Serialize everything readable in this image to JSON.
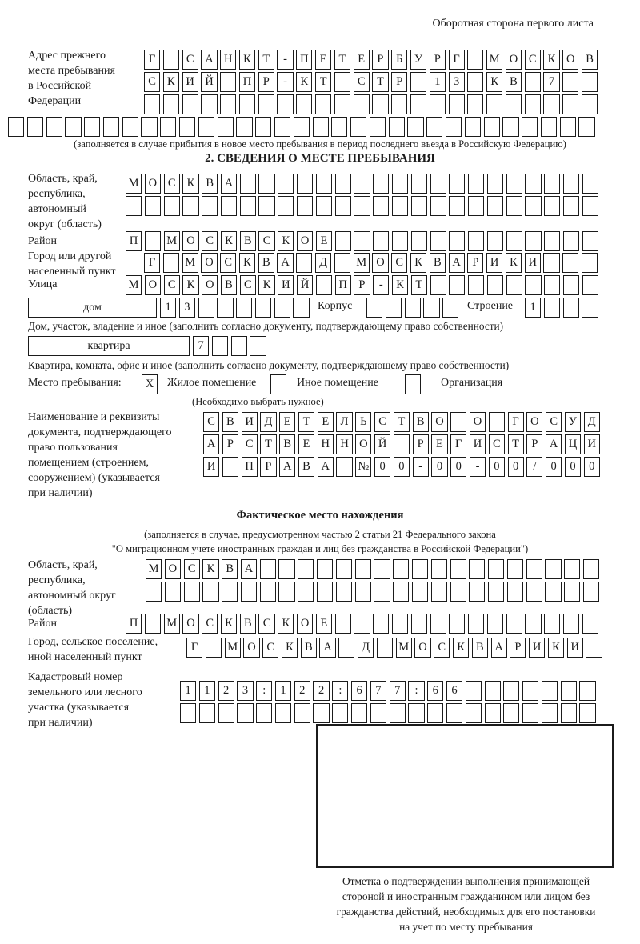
{
  "header_note": "Оборотная сторона первого листа",
  "prev_address": {
    "label": "Адрес прежнего\nместа пребывания\nв Российской\nФедерации",
    "row1": {
      "text": "Г САНКТ-ПЕТЕРБУРГ МОСКОВ",
      "len": 24
    },
    "row2": {
      "text": "СКИЙ ПР-КТ СТР 13 КВ 7",
      "len": 24
    },
    "row3": {
      "text": "",
      "len": 24
    },
    "row4": {
      "text": "",
      "len": 31
    },
    "note": "(заполняется в случае прибытия в новое место пребывания в период последнего въезда в Российскую Федерацию)"
  },
  "section2": {
    "title": "2. СВЕДЕНИЯ О МЕСТЕ ПРЕБЫВАНИЯ",
    "oblast": {
      "label": "Область, край,\nреспублика,\nавтономный\nокруг (область)",
      "row1": {
        "text": "МОСКВА",
        "len": 25
      },
      "row2": {
        "text": "",
        "len": 25
      }
    },
    "raion": {
      "label": "Район",
      "row": {
        "text": "П МОСКВСКОЕ",
        "len": 25
      }
    },
    "gorod": {
      "label": "Город или другой\nнаселенный пункт",
      "row": {
        "text": "Г МОСКВА Д МОСКВАРИКИ",
        "len": 24
      }
    },
    "ulitsa": {
      "label": "Улица",
      "row": {
        "text": "МОСКОВСКИЙ ПР-КТ",
        "len": 25
      }
    },
    "dom": {
      "box_label": "дом",
      "cells": {
        "text": "13",
        "len": 8
      },
      "korpus_label": "Корпус",
      "korpus_cells": {
        "text": "",
        "len": 5
      },
      "stroenie_label": "Строение",
      "stroenie_cells": {
        "text": "1",
        "len": 4
      },
      "note": "Дом, участок, владение и иное (заполнить согласно документу, подтверждающему право собственности)"
    },
    "kvartira": {
      "box_label": "квартира",
      "cells": {
        "text": "7",
        "len": 4
      },
      "note": "Квартира, комната, офис и иное (заполнить согласно документу, подтверждающему право собственности)"
    },
    "mesto": {
      "label": "Место пребывания:",
      "check1": "X",
      "option1": "Жилое помещение",
      "check2": "",
      "option2": "Иное помещение",
      "check3": "",
      "option3": "Организация",
      "note": "(Необходимо выбрать нужное)"
    },
    "doc": {
      "label": "Наименование и реквизиты\nдокумента, подтверждающего\nправо пользования\nпомещением (строением,\nсооружением) (указывается\nпри наличии)",
      "row1": {
        "text": "СВИДЕТЕЛЬСТВО О ГОСУД",
        "len": 21
      },
      "row2": {
        "text": "АРСТВЕННОЙ РЕГИСТРАЦИ",
        "len": 21
      },
      "row3": {
        "text": "И ПРАВА №00-00-00/000",
        "len": 21
      }
    }
  },
  "fact": {
    "title": "Фактическое место нахождения",
    "note1": "(заполняется в случае, предусмотренном частью 2 статьи 21 Федерального закона",
    "note2": "\"О миграционном учете иностранных граждан и лиц без гражданства в Российской Федерации\")",
    "oblast": {
      "label": "Область, край,\nреспублика,\nавтономный округ\n(область)",
      "row1": {
        "text": "МОСКВА",
        "len": 24
      },
      "row2": {
        "text": "",
        "len": 24
      }
    },
    "raion": {
      "label": "Район",
      "row": {
        "text": "П МОСКВСКОЕ",
        "len": 25
      }
    },
    "gorod": {
      "label": "Город, сельское поселение,\nиной населенный пункт",
      "row": {
        "text": "Г МОСКВА Д МОСКВАРИКИ",
        "len": 22
      }
    },
    "kadastr": {
      "label": "Кадастровый номер\nземельного или лесного\nучастка (указывается\nпри наличии)",
      "row1": {
        "text": "1123:122:677:66",
        "len": 22
      },
      "row2": {
        "text": "",
        "len": 22
      }
    },
    "stamp_note": "Отметка о подтверждении выполнения принимающей\nстороной и иностранным гражданином или лицом без\nгражданства действий, необходимых для его постановки\nна учет по месту пребывания"
  }
}
